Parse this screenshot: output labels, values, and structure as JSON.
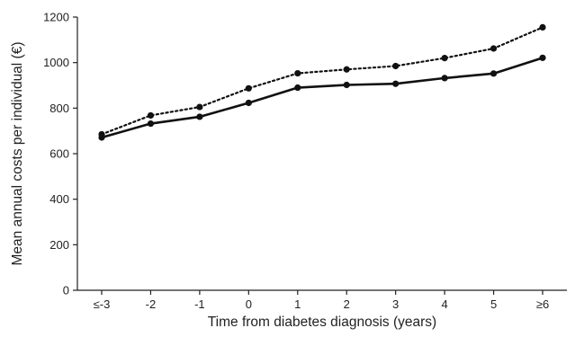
{
  "chart_data": {
    "type": "line",
    "title": "",
    "xlabel": "Time from diabetes diagnosis (years)",
    "ylabel": "Mean annual costs per individual (€)",
    "categories": [
      "≤-3",
      "-2",
      "-1",
      "0",
      "1",
      "2",
      "3",
      "4",
      "5",
      "≥6"
    ],
    "ylim": [
      0,
      1200
    ],
    "yticks": [
      0,
      200,
      400,
      600,
      800,
      1000,
      1200
    ],
    "grid": false,
    "legend": "none",
    "series": [
      {
        "style": "dotted",
        "color": "#111111",
        "values": [
          685,
          768,
          805,
          887,
          953,
          970,
          985,
          1020,
          1062,
          1155
        ]
      },
      {
        "style": "solid",
        "color": "#111111",
        "values": [
          671,
          732,
          762,
          823,
          890,
          902,
          907,
          932,
          952,
          1021
        ]
      }
    ]
  }
}
